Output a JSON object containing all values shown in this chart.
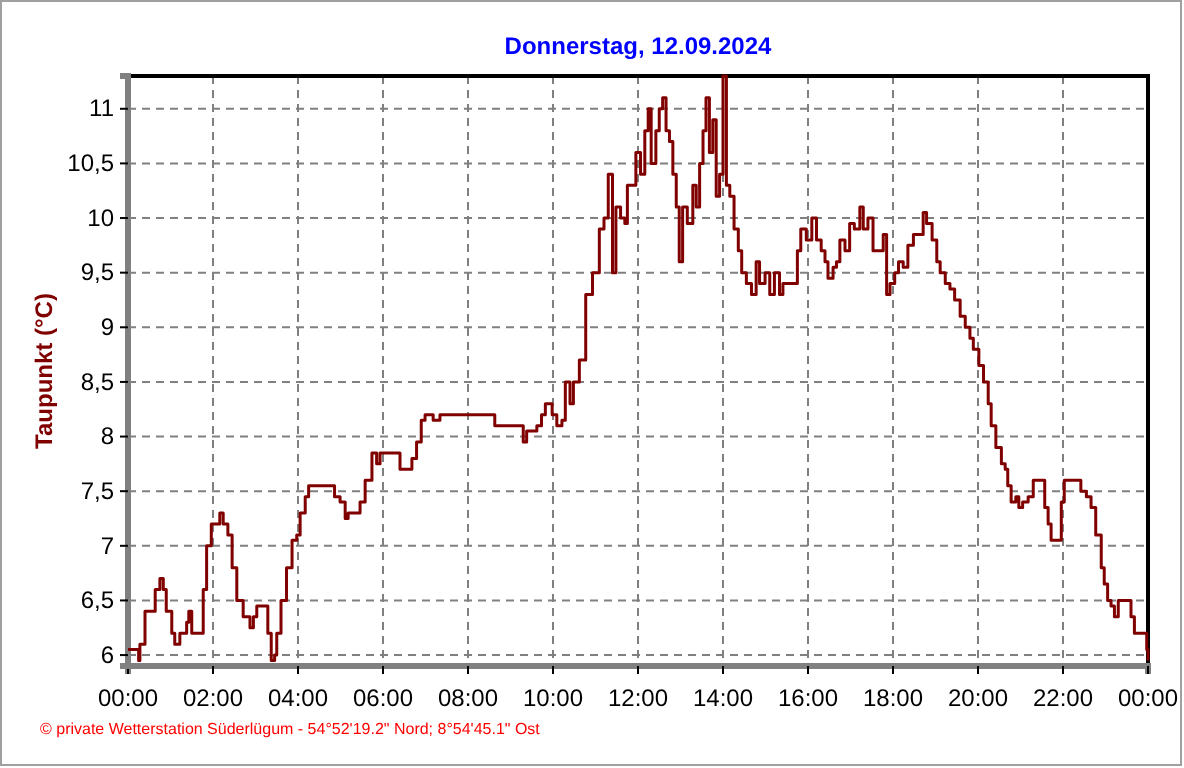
{
  "chart_data": {
    "type": "step",
    "title": "Donnerstag, 12.09.2024",
    "ylabel": "Taupunkt  (°C)",
    "annotations": [
      "© private Wetterstation Süderlügum  -  54°52'19.2\" Nord; 8°54'45.1\" Ost"
    ],
    "xlim": [
      0,
      24
    ],
    "ylim": [
      5.9,
      11.3
    ],
    "xticks": [
      {
        "value": 0,
        "label": "00:00"
      },
      {
        "value": 2,
        "label": "02:00"
      },
      {
        "value": 4,
        "label": "04:00"
      },
      {
        "value": 6,
        "label": "06:00"
      },
      {
        "value": 8,
        "label": "08:00"
      },
      {
        "value": 10,
        "label": "10:00"
      },
      {
        "value": 12,
        "label": "12:00"
      },
      {
        "value": 14,
        "label": "14:00"
      },
      {
        "value": 16,
        "label": "16:00"
      },
      {
        "value": 18,
        "label": "18:00"
      },
      {
        "value": 20,
        "label": "20:00"
      },
      {
        "value": 22,
        "label": "22:00"
      },
      {
        "value": 24,
        "label": "00:00"
      }
    ],
    "yticks": [
      6,
      {
        "value": 6.5,
        "label": "6,5"
      },
      7,
      {
        "value": 7.5,
        "label": "7,5"
      },
      8,
      {
        "value": 8.5,
        "label": "8,5"
      },
      9,
      {
        "value": 9.5,
        "label": "9,5"
      },
      10,
      {
        "value": 10.5,
        "label": "10,5"
      },
      11
    ],
    "grid": true,
    "line_style": "solid",
    "x": [
      0,
      0.25,
      0.28,
      0.4,
      0.6,
      0.64,
      0.75,
      0.83,
      0.9,
      1.03,
      1.1,
      1.22,
      1.38,
      1.43,
      1.5,
      1.7,
      1.77,
      1.85,
      1.96,
      2.13,
      2.16,
      2.24,
      2.35,
      2.45,
      2.56,
      2.71,
      2.87,
      2.95,
      3.03,
      3.23,
      3.29,
      3.37,
      3.45,
      3.5,
      3.6,
      3.73,
      3.86,
      3.97,
      4.05,
      4.17,
      4.25,
      4.78,
      4.86,
      4.99,
      5.11,
      5.18,
      5.38,
      5.46,
      5.58,
      5.74,
      5.85,
      5.93,
      6.32,
      6.4,
      6.59,
      6.68,
      6.79,
      6.9,
      6.99,
      7.18,
      7.34,
      7.65,
      8.52,
      8.63,
      9.22,
      9.3,
      9.38,
      9.62,
      9.73,
      9.82,
      9.98,
      10.09,
      10.21,
      10.29,
      10.4,
      10.48,
      10.62,
      10.77,
      10.93,
      11.09,
      11.2,
      11.3,
      11.4,
      11.48,
      11.59,
      11.69,
      11.75,
      11.87,
      11.95,
      12.06,
      12.16,
      12.24,
      12.31,
      12.42,
      12.5,
      12.58,
      12.66,
      12.74,
      12.82,
      12.9,
      12.97,
      13.05,
      13.16,
      13.29,
      13.37,
      13.45,
      13.53,
      13.6,
      13.68,
      13.76,
      13.84,
      13.92,
      14,
      14.08,
      14.16,
      14.26,
      14.36,
      14.44,
      14.55,
      14.67,
      14.78,
      14.86,
      14.99,
      15.1,
      15.21,
      15.33,
      15.41,
      15.65,
      15.75,
      15.83,
      15.96,
      16.09,
      16.2,
      16.31,
      16.4,
      16.47,
      16.59,
      16.67,
      16.75,
      16.87,
      16.98,
      17.09,
      17.22,
      17.3,
      17.41,
      17.53,
      17.66,
      17.77,
      17.85,
      17.93,
      18.04,
      18.13,
      18.24,
      18.35,
      18.48,
      18.6,
      18.71,
      18.79,
      18.92,
      19.03,
      19.11,
      19.23,
      19.34,
      19.45,
      19.58,
      19.7,
      19.81,
      19.89,
      20.02,
      20.13,
      20.24,
      20.31,
      20.42,
      20.55,
      20.64,
      20.7,
      20.78,
      20.89,
      20.96,
      21.05,
      21.18,
      21.3,
      21.49,
      21.57,
      21.65,
      21.72,
      21.88,
      21.96,
      22.03,
      22.27,
      22.42,
      22.55,
      22.66,
      22.77,
      22.9,
      22.97,
      23.05,
      23.13,
      23.21,
      23.3,
      23.52,
      23.6,
      23.68,
      23.92,
      23.97,
      24
    ],
    "series": [
      {
        "color": "#800000",
        "values": [
          6.05,
          5.95,
          6.1,
          6.4,
          6.4,
          6.6,
          6.7,
          6.6,
          6.4,
          6.2,
          6.1,
          6.2,
          6.3,
          6.4,
          6.2,
          6.2,
          6.6,
          7.0,
          7.2,
          7.2,
          7.3,
          7.2,
          7.1,
          6.8,
          6.5,
          6.35,
          6.25,
          6.35,
          6.45,
          6.45,
          6.2,
          5.95,
          6.0,
          6.2,
          6.5,
          6.8,
          7.05,
          7.1,
          7.3,
          7.45,
          7.55,
          7.55,
          7.45,
          7.4,
          7.25,
          7.3,
          7.3,
          7.4,
          7.6,
          7.85,
          7.75,
          7.85,
          7.85,
          7.7,
          7.7,
          7.8,
          7.95,
          8.15,
          8.2,
          8.15,
          8.2,
          8.2,
          8.2,
          8.1,
          8.1,
          7.95,
          8.05,
          8.1,
          8.2,
          8.3,
          8.2,
          8.1,
          8.15,
          8.5,
          8.3,
          8.5,
          8.7,
          9.3,
          9.5,
          9.9,
          10.0,
          10.4,
          9.5,
          10.1,
          10.0,
          9.95,
          10.3,
          10.3,
          10.6,
          10.4,
          10.8,
          11.0,
          10.5,
          10.8,
          11.0,
          11.1,
          10.8,
          10.7,
          10.4,
          10.1,
          9.6,
          10.1,
          9.95,
          10.3,
          10.1,
          10.5,
          10.8,
          11.1,
          10.6,
          10.9,
          10.2,
          10.4,
          11.3,
          10.3,
          10.2,
          9.9,
          9.7,
          9.5,
          9.4,
          9.3,
          9.6,
          9.4,
          9.5,
          9.3,
          9.5,
          9.3,
          9.4,
          9.4,
          9.7,
          9.9,
          9.8,
          10.0,
          9.8,
          9.7,
          9.6,
          9.45,
          9.55,
          9.6,
          9.8,
          9.7,
          9.95,
          9.9,
          10.1,
          9.9,
          10.0,
          9.7,
          9.7,
          9.85,
          9.3,
          9.4,
          9.5,
          9.6,
          9.55,
          9.75,
          9.85,
          9.85,
          10.05,
          9.95,
          9.8,
          9.6,
          9.5,
          9.4,
          9.35,
          9.25,
          9.1,
          9.0,
          8.9,
          8.8,
          8.65,
          8.5,
          8.3,
          8.1,
          7.9,
          7.75,
          7.7,
          7.55,
          7.4,
          7.45,
          7.35,
          7.4,
          7.45,
          7.6,
          7.6,
          7.35,
          7.2,
          7.05,
          7.05,
          7.4,
          7.6,
          7.6,
          7.5,
          7.45,
          7.35,
          7.1,
          6.8,
          6.65,
          6.5,
          6.45,
          6.35,
          6.5,
          6.5,
          6.35,
          6.2,
          6.2,
          6.05,
          5.95
        ]
      }
    ]
  }
}
